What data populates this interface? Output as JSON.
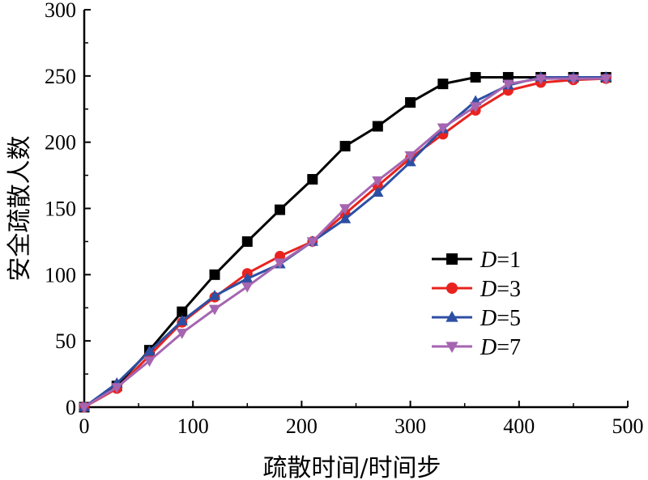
{
  "chart_data": {
    "type": "line",
    "title": "",
    "xlabel": "疏散时间/时间步",
    "ylabel": "安全疏散人数",
    "xlim": [
      0,
      500
    ],
    "ylim": [
      0,
      300
    ],
    "xticks": [
      0,
      100,
      200,
      300,
      400,
      500
    ],
    "yticks": [
      0,
      50,
      100,
      150,
      200,
      250,
      300
    ],
    "grid": false,
    "legend_position": "center-right",
    "series": [
      {
        "name": "D=1",
        "legend_var": "D",
        "legend_eq": "=1",
        "color": "#000000",
        "marker": "square",
        "x": [
          0,
          30,
          60,
          90,
          120,
          150,
          180,
          210,
          240,
          270,
          300,
          330,
          360,
          390,
          420,
          450,
          480
        ],
        "y": [
          0,
          16,
          43,
          72,
          100,
          125,
          149,
          172,
          197,
          212,
          230,
          244,
          249,
          249,
          249,
          249,
          249
        ]
      },
      {
        "name": "D=3",
        "legend_var": "D",
        "legend_eq": "=3",
        "color": "#e8231f",
        "marker": "circle",
        "x": [
          0,
          30,
          60,
          90,
          120,
          150,
          180,
          210,
          240,
          270,
          300,
          330,
          360,
          390,
          420,
          450,
          480
        ],
        "y": [
          0,
          14,
          39,
          64,
          83,
          101,
          114,
          125,
          146,
          167,
          188,
          206,
          224,
          239,
          245,
          247,
          248
        ]
      },
      {
        "name": "D=5",
        "legend_var": "D",
        "legend_eq": "=5",
        "color": "#2d4fa3",
        "marker": "triangle-up",
        "x": [
          0,
          30,
          60,
          90,
          120,
          150,
          180,
          210,
          240,
          270,
          300,
          330,
          360,
          390,
          420,
          450,
          480
        ],
        "y": [
          0,
          18,
          42,
          65,
          84,
          97,
          108,
          125,
          142,
          162,
          185,
          210,
          231,
          243,
          249,
          249,
          249
        ]
      },
      {
        "name": "D=7",
        "legend_var": "D",
        "legend_eq": "=7",
        "color": "#a565b0",
        "marker": "triangle-down",
        "x": [
          0,
          30,
          60,
          90,
          120,
          150,
          180,
          210,
          240,
          270,
          300,
          330,
          360,
          390,
          420,
          450,
          480
        ],
        "y": [
          0,
          15,
          35,
          56,
          74,
          91,
          109,
          125,
          150,
          171,
          190,
          211,
          227,
          244,
          248,
          248,
          248
        ]
      }
    ]
  }
}
